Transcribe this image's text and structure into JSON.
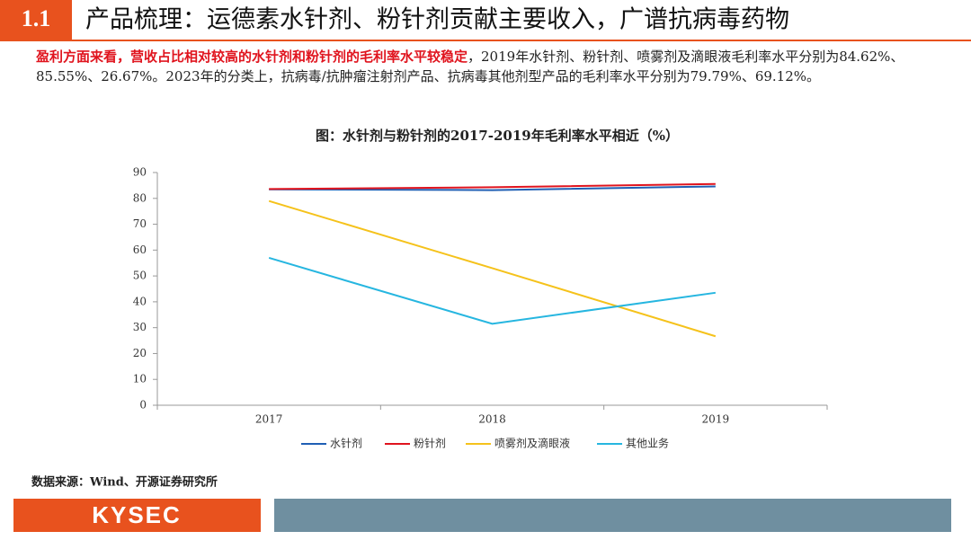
{
  "header": {
    "number": "1.1",
    "title": "产品梳理：运德素水针剂、粉针剂贡献主要收入，广谱抗病毒药物"
  },
  "paragraph": {
    "highlight": "盈利方面来看，营收占比相对较高的水针剂和粉针剂的毛利率水平较稳定",
    "text": "，2019年水针剂、粉针剂、喷雾剂及滴眼液毛利率水平分别为84.62%、85.55%、26.67%。2023年的分类上，抗病毒/抗肿瘤注射剂产品、抗病毒其他剂型产品的毛利率水平分别为79.79%、69.12%。"
  },
  "chart_data": {
    "type": "line",
    "title": "图：水针剂与粉针剂的2017-2019年毛利率水平相近（%）",
    "categories": [
      "2017",
      "2018",
      "2019"
    ],
    "series": [
      {
        "name": "水针剂",
        "color": "#1f5fb4",
        "values": [
          83.5,
          83.2,
          84.62
        ]
      },
      {
        "name": "粉针剂",
        "color": "#e0141e",
        "values": [
          83.6,
          84.3,
          85.55
        ]
      },
      {
        "name": "喷雾剂及滴眼液",
        "color": "#f5c21b",
        "values": [
          79,
          53,
          26.67
        ]
      },
      {
        "name": "其他业务",
        "color": "#26b6e0",
        "values": [
          57,
          31.5,
          43.5
        ]
      }
    ],
    "ylim": [
      0,
      90
    ],
    "yticks": [
      0,
      10,
      20,
      30,
      40,
      50,
      60,
      70,
      80,
      90
    ],
    "legend": "bottom"
  },
  "source": "数据来源：Wind、开源证券研究所",
  "footer": {
    "logo": "KYSEC"
  }
}
